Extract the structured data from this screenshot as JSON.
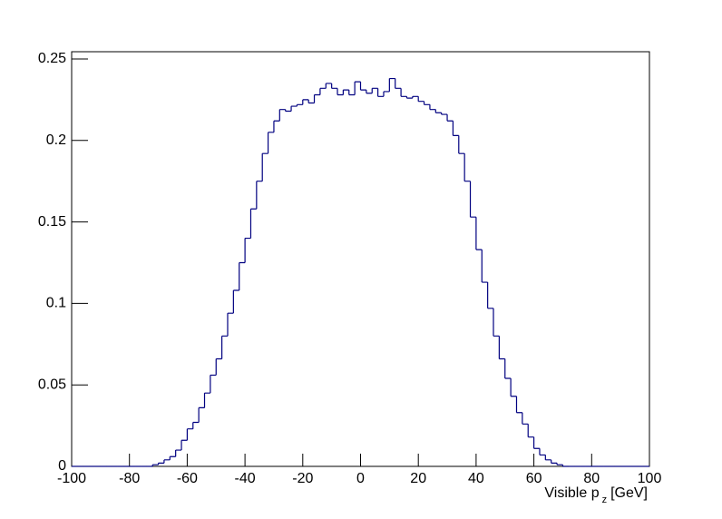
{
  "chart_data": {
    "type": "histogram",
    "x_label": {
      "text": "Visible p",
      "sub": "z",
      "unit": "[GeV]"
    },
    "bins": [
      -100,
      -98,
      -96,
      -94,
      -92,
      -90,
      -88,
      -86,
      -84,
      -82,
      -80,
      -78,
      -76,
      -74,
      -72,
      -70,
      -68,
      -66,
      -64,
      -62,
      -60,
      -58,
      -56,
      -54,
      -52,
      -50,
      -48,
      -46,
      -44,
      -42,
      -40,
      -38,
      -36,
      -34,
      -32,
      -30,
      -28,
      -26,
      -24,
      -22,
      -20,
      -18,
      -16,
      -14,
      -12,
      -10,
      -8,
      -6,
      -4,
      -2,
      0,
      2,
      4,
      6,
      8,
      10,
      12,
      14,
      16,
      18,
      20,
      22,
      24,
      26,
      28,
      30,
      32,
      34,
      36,
      38,
      40,
      42,
      44,
      46,
      48,
      50,
      52,
      54,
      56,
      58,
      60,
      62,
      64,
      66,
      68,
      70,
      72,
      74,
      76,
      78,
      80,
      82,
      84,
      86,
      88,
      90,
      92,
      94,
      96,
      98,
      100
    ],
    "values": [
      0,
      0,
      0,
      0,
      0,
      0,
      0,
      0,
      0,
      0,
      0,
      0,
      0,
      0,
      0.001,
      0.002,
      0.004,
      0.006,
      0.01,
      0.016,
      0.023,
      0.027,
      0.036,
      0.045,
      0.056,
      0.066,
      0.08,
      0.094,
      0.108,
      0.125,
      0.14,
      0.158,
      0.175,
      0.192,
      0.205,
      0.212,
      0.219,
      0.218,
      0.221,
      0.222,
      0.225,
      0.223,
      0.228,
      0.232,
      0.235,
      0.232,
      0.228,
      0.231,
      0.228,
      0.236,
      0.231,
      0.229,
      0.232,
      0.227,
      0.23,
      0.238,
      0.232,
      0.227,
      0.226,
      0.227,
      0.224,
      0.222,
      0.219,
      0.217,
      0.216,
      0.212,
      0.203,
      0.192,
      0.175,
      0.153,
      0.133,
      0.113,
      0.097,
      0.08,
      0.066,
      0.054,
      0.043,
      0.033,
      0.026,
      0.018,
      0.011,
      0.007,
      0.004,
      0.002,
      0.001,
      0,
      0,
      0,
      0,
      0,
      0,
      0,
      0,
      0,
      0,
      0,
      0,
      0,
      0,
      0
    ],
    "color": "#000080",
    "xlim": [
      -100,
      100
    ],
    "ylim": [
      0,
      0.25
    ],
    "xticks": [
      -100,
      -80,
      -60,
      -40,
      -20,
      0,
      20,
      40,
      60,
      80,
      100
    ],
    "yticks": [
      0,
      0.05,
      0.1,
      0.15,
      0.2,
      0.25
    ]
  }
}
